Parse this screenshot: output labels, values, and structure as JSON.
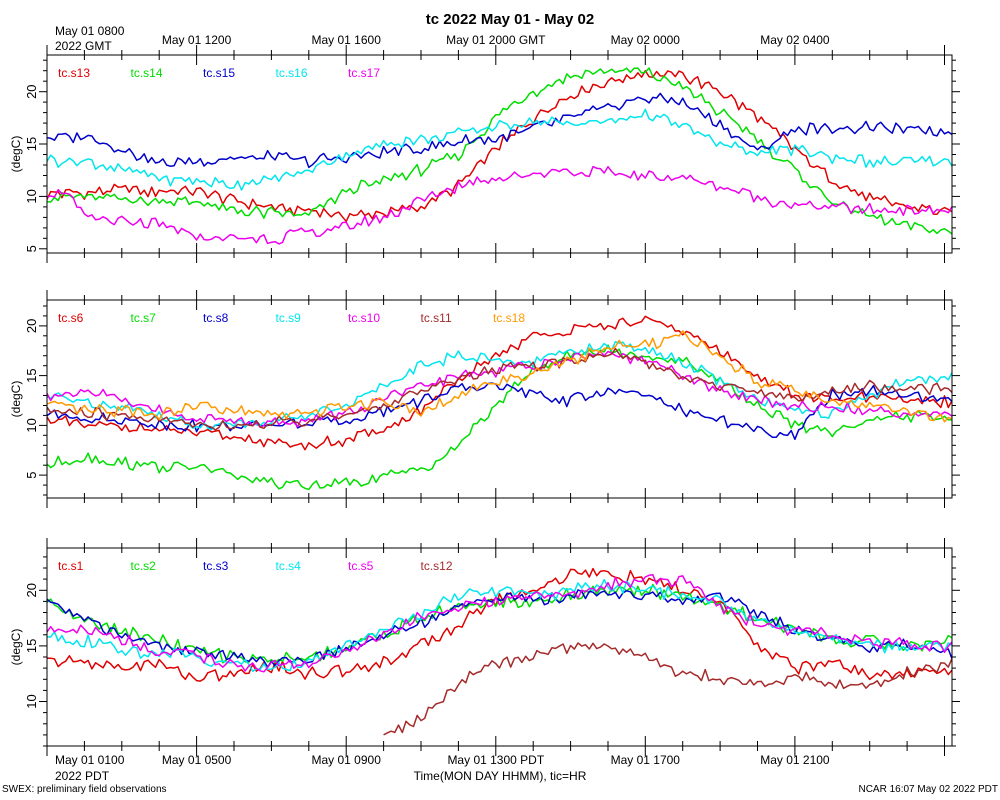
{
  "title": "tc 2022 May 01 - May 02",
  "gmt_axis": {
    "first_label_line1": "May 01 0800",
    "first_label_line2": "2022 GMT",
    "labels": [
      "May 01 0800",
      "May 01 1200",
      "May 01 1600",
      "May 01 2000 GMT",
      "May 02 0000",
      "May 02 0400"
    ]
  },
  "pdt_axis": {
    "labels": [
      "May 01 0100",
      "May 01 0500",
      "May 01 0900",
      "May 01 1300 PDT",
      "May 01 1700",
      "May 01 2100"
    ],
    "year_label": "2022 PDT",
    "xlabel": "Time(MON DAY HHMM), tic=HR"
  },
  "footer": {
    "left": "SWEX: preliminary field observations",
    "right": "NCAR 16:07 May 02 2022 PDT"
  },
  "colors": {
    "red": "#e00000",
    "green": "#00dd00",
    "blue": "#0000cc",
    "cyan": "#00e5ee",
    "magenta": "#ee00ee",
    "brown": "#a52a2a",
    "orange": "#ff9900"
  },
  "chart_data": [
    {
      "type": "line",
      "ylabel": "(degC)",
      "ylim": [
        4.6,
        23.5
      ],
      "yticks": [
        5,
        10,
        15,
        20
      ],
      "x_unit": "hours since May 01 0800 GMT",
      "xlim": [
        0,
        24.2
      ],
      "series": [
        {
          "name": "tc.s13",
          "color": "#e00000",
          "x": [
            0,
            2,
            4,
            5,
            6,
            7,
            8,
            9,
            10,
            11,
            12,
            13,
            14,
            15,
            16,
            17,
            18,
            19,
            20,
            21,
            22,
            23,
            24.2
          ],
          "values": [
            10.2,
            10.6,
            10.4,
            9.6,
            9.0,
            8.6,
            8.2,
            8.4,
            9.0,
            11.0,
            14.5,
            17.5,
            19.8,
            21.0,
            21.8,
            21.5,
            20.0,
            17.5,
            14.5,
            11.5,
            9.8,
            9.0,
            8.5
          ]
        },
        {
          "name": "tc.s14",
          "color": "#00dd00",
          "x": [
            0,
            2,
            4,
            5,
            6,
            7,
            8,
            9,
            10,
            11,
            12,
            13,
            14,
            15,
            16,
            17,
            18,
            19,
            20,
            21,
            22,
            23,
            24.2
          ],
          "values": [
            10.0,
            9.8,
            9.4,
            8.6,
            8.4,
            8.2,
            10.5,
            11.5,
            12.5,
            14.0,
            17.5,
            20.0,
            21.5,
            22.0,
            21.8,
            20.5,
            18.0,
            15.5,
            12.5,
            9.5,
            8.0,
            7.3,
            6.5
          ]
        },
        {
          "name": "tc.s15",
          "color": "#0000cc",
          "x": [
            0,
            1,
            2,
            3,
            4,
            5,
            6,
            7,
            8,
            9,
            10,
            11,
            12,
            13,
            14,
            15,
            16,
            17,
            18,
            19,
            20,
            21,
            22,
            23,
            24.2
          ],
          "values": [
            15.6,
            15.8,
            14.5,
            13.2,
            13.4,
            13.6,
            13.8,
            13.4,
            13.6,
            14.2,
            14.5,
            15.2,
            15.5,
            16.5,
            17.5,
            18.5,
            19.5,
            19.0,
            16.8,
            14.2,
            16.4,
            16.5,
            16.5,
            16.4,
            16.2
          ]
        },
        {
          "name": "tc.s16",
          "color": "#00e5ee",
          "x": [
            0,
            1,
            2,
            3,
            4,
            5,
            6,
            7,
            8,
            9,
            10,
            11,
            12,
            13,
            14,
            15,
            16,
            17,
            18,
            19,
            20,
            21,
            22,
            23,
            24.2
          ],
          "values": [
            13.5,
            13.3,
            12.5,
            11.8,
            11.4,
            11.2,
            11.5,
            12.5,
            14.0,
            15.0,
            15.5,
            16.0,
            16.8,
            17.2,
            17.0,
            17.2,
            17.8,
            16.8,
            15.0,
            14.2,
            14.5,
            13.8,
            13.3,
            13.2,
            13.3
          ]
        },
        {
          "name": "tc.s17",
          "color": "#ee00ee",
          "x": [
            0,
            0.5,
            1,
            2,
            3,
            4,
            5,
            6,
            7,
            8,
            9,
            10,
            11,
            12,
            13,
            14,
            15,
            16,
            17,
            18,
            19,
            20,
            21,
            22,
            23,
            24.2
          ],
          "values": [
            10.2,
            10.4,
            8.0,
            7.5,
            7.2,
            6.2,
            5.9,
            6.0,
            6.5,
            7.0,
            8.0,
            9.5,
            11.0,
            11.8,
            12.2,
            12.5,
            12.2,
            12.0,
            11.8,
            11.0,
            10.0,
            9.2,
            9.0,
            8.8,
            8.7,
            8.6
          ]
        }
      ]
    },
    {
      "type": "line",
      "ylabel": "(degC)",
      "ylim": [
        2.7,
        22.6
      ],
      "yticks": [
        5,
        10,
        15,
        20
      ],
      "x_unit": "hours since May 01 0800 GMT",
      "xlim": [
        0,
        24.2
      ],
      "series": [
        {
          "name": "tc.s6",
          "color": "#e00000",
          "x": [
            0,
            1,
            2,
            3,
            4,
            5,
            6,
            7,
            8,
            9,
            10,
            11,
            12,
            13,
            14,
            15,
            16,
            17,
            18,
            19,
            20,
            21,
            22,
            23,
            24.2
          ],
          "values": [
            10.5,
            10.0,
            9.8,
            9.5,
            9.2,
            8.8,
            8.2,
            8.0,
            8.5,
            9.5,
            11.5,
            14.5,
            17.0,
            19.0,
            19.5,
            20.0,
            20.5,
            19.5,
            17.5,
            15.0,
            13.0,
            12.5,
            12.8,
            12.5,
            12.3
          ]
        },
        {
          "name": "tc.s7",
          "color": "#00dd00",
          "x": [
            0,
            1,
            2,
            3,
            4,
            5,
            6,
            7,
            8,
            9,
            10,
            11,
            12,
            13,
            14,
            15,
            16,
            17,
            18,
            19,
            20,
            21,
            22,
            23,
            24.2
          ],
          "values": [
            6.0,
            6.8,
            6.3,
            5.8,
            5.8,
            5.0,
            4.2,
            3.8,
            4.2,
            4.8,
            5.5,
            8.0,
            12.0,
            15.5,
            17.0,
            17.5,
            17.0,
            16.5,
            14.5,
            12.0,
            10.0,
            9.5,
            10.5,
            11.0,
            10.5
          ]
        },
        {
          "name": "tc.s8",
          "color": "#0000cc",
          "x": [
            0,
            1,
            2,
            3,
            4,
            5,
            6,
            7,
            8,
            9,
            10,
            11,
            12,
            13,
            14,
            15,
            16,
            17,
            18,
            19,
            20,
            21,
            22,
            23,
            24.2
          ],
          "values": [
            11.0,
            10.8,
            10.5,
            10.2,
            10.0,
            9.8,
            10.0,
            10.2,
            10.6,
            11.5,
            12.5,
            13.5,
            14.0,
            13.0,
            12.5,
            13.5,
            13.0,
            11.5,
            10.5,
            9.5,
            9.0,
            13.0,
            13.5,
            12.8,
            12.5
          ]
        },
        {
          "name": "tc.s9",
          "color": "#00e5ee",
          "x": [
            0,
            1,
            2,
            3,
            4,
            5,
            6,
            7,
            8,
            9,
            10,
            11,
            12,
            13,
            14,
            15,
            16,
            17,
            18,
            19,
            20,
            21,
            22,
            23,
            24.2
          ],
          "values": [
            13.0,
            12.5,
            12.0,
            11.0,
            10.0,
            10.2,
            10.5,
            11.0,
            12.0,
            14.0,
            16.0,
            17.0,
            16.5,
            16.5,
            17.5,
            18.0,
            17.5,
            16.5,
            14.5,
            12.5,
            11.5,
            11.0,
            13.0,
            14.5,
            15.0
          ]
        },
        {
          "name": "tc.s10",
          "color": "#ee00ee",
          "x": [
            0,
            1,
            2,
            3,
            4,
            5,
            6,
            7,
            8,
            9,
            10,
            11,
            12,
            13,
            14,
            15,
            16,
            17,
            18,
            19,
            20,
            21,
            22,
            23,
            24.2
          ],
          "values": [
            13.0,
            13.5,
            12.5,
            11.5,
            10.8,
            10.5,
            10.2,
            10.5,
            11.2,
            12.5,
            14.0,
            15.0,
            15.5,
            16.0,
            16.8,
            17.2,
            16.5,
            15.0,
            13.5,
            12.5,
            12.0,
            11.8,
            11.5,
            11.2,
            11.0
          ]
        },
        {
          "name": "tc.s11",
          "color": "#a52a2a",
          "x": [
            0,
            1,
            2,
            3,
            4,
            5,
            6,
            7,
            8,
            9,
            10,
            11,
            12,
            13,
            14,
            15,
            16,
            17,
            18,
            19,
            20,
            21,
            22,
            23,
            24.2
          ],
          "values": [
            11.5,
            11.2,
            11.0,
            10.5,
            10.2,
            10.0,
            10.2,
            10.5,
            11.0,
            12.0,
            13.5,
            14.8,
            15.5,
            16.0,
            16.5,
            17.5,
            16.5,
            15.0,
            14.0,
            13.5,
            12.5,
            13.5,
            14.0,
            13.8,
            13.5
          ]
        },
        {
          "name": "tc.s18",
          "color": "#ff9900",
          "x": [
            0,
            1,
            2,
            3,
            4,
            5,
            6,
            7,
            8,
            9,
            10,
            11,
            12,
            13,
            14,
            15,
            16,
            17,
            18,
            19,
            20,
            21,
            22,
            23,
            24.2
          ],
          "values": [
            12.0,
            11.5,
            11.5,
            11.2,
            12.0,
            11.5,
            11.0,
            11.2,
            12.0,
            12.5,
            11.5,
            13.0,
            14.5,
            15.0,
            16.5,
            18.0,
            18.0,
            19.0,
            17.0,
            14.5,
            13.5,
            12.5,
            12.0,
            11.5,
            10.5
          ]
        }
      ]
    },
    {
      "type": "line",
      "ylabel": "(degC)",
      "ylim": [
        6.0,
        23.8
      ],
      "yticks": [
        10,
        15,
        20
      ],
      "x_unit": "hours since May 01 0800 GMT",
      "xlim": [
        0,
        24.2
      ],
      "series": [
        {
          "name": "tc.s1",
          "color": "#e00000",
          "x": [
            0,
            1,
            2,
            3,
            4,
            5,
            6,
            7,
            8,
            9,
            10,
            11,
            12,
            13,
            14,
            15,
            16,
            17,
            18,
            19,
            20,
            21,
            22,
            23,
            24.2
          ],
          "values": [
            13.5,
            13.5,
            13.0,
            13.5,
            12.0,
            12.5,
            13.2,
            12.5,
            12.8,
            13.5,
            15.0,
            17.0,
            19.0,
            20.0,
            21.5,
            21.5,
            21.0,
            20.0,
            19.0,
            15.0,
            13.0,
            13.5,
            12.5,
            12.5,
            12.8
          ]
        },
        {
          "name": "tc.s2",
          "color": "#00dd00",
          "x": [
            0,
            1,
            2,
            3,
            4,
            5,
            6,
            7,
            8,
            9,
            10,
            11,
            12,
            13,
            14,
            15,
            16,
            17,
            18,
            19,
            20,
            21,
            22,
            23,
            24.2
          ],
          "values": [
            19.0,
            17.5,
            16.5,
            15.5,
            14.5,
            14.0,
            13.8,
            14.0,
            15.0,
            16.0,
            17.5,
            18.5,
            19.0,
            19.0,
            19.5,
            20.0,
            20.0,
            19.5,
            18.5,
            17.5,
            16.5,
            15.5,
            15.5,
            15.0,
            15.5
          ]
        },
        {
          "name": "tc.s3",
          "color": "#0000cc",
          "x": [
            0,
            1,
            2,
            3,
            4,
            5,
            6,
            7,
            8,
            9,
            10,
            11,
            12,
            13,
            14,
            15,
            16,
            17,
            18,
            19,
            20,
            21,
            22,
            23,
            24.2
          ],
          "values": [
            19.0,
            17.5,
            16.0,
            15.0,
            14.5,
            14.2,
            13.5,
            13.8,
            14.8,
            16.0,
            17.0,
            18.5,
            19.5,
            19.0,
            19.5,
            20.0,
            19.5,
            19.0,
            19.5,
            18.0,
            16.5,
            15.5,
            15.0,
            15.0,
            14.5
          ]
        },
        {
          "name": "tc.s4",
          "color": "#00e5ee",
          "x": [
            0,
            1,
            2,
            3,
            4,
            5,
            6,
            7,
            8,
            9,
            10,
            11,
            12,
            13,
            14,
            15,
            16,
            17,
            18,
            19,
            20,
            21,
            22,
            23,
            24.2
          ],
          "values": [
            16.0,
            15.5,
            14.5,
            14.5,
            14.0,
            13.5,
            13.0,
            13.5,
            15.0,
            16.5,
            18.0,
            19.5,
            20.0,
            19.5,
            20.0,
            20.5,
            20.0,
            19.5,
            19.0,
            17.5,
            16.5,
            15.5,
            15.0,
            15.0,
            15.0
          ]
        },
        {
          "name": "tc.s5",
          "color": "#ee00ee",
          "x": [
            0,
            1,
            2,
            3,
            4,
            5,
            6,
            7,
            8,
            9,
            10,
            11,
            12,
            13,
            14,
            15,
            16,
            17,
            18,
            19,
            20,
            21,
            22,
            23,
            24.2
          ],
          "values": [
            16.5,
            16.5,
            15.5,
            14.5,
            14.2,
            13.2,
            13.0,
            13.5,
            14.5,
            16.0,
            17.5,
            18.5,
            19.0,
            19.5,
            19.5,
            20.5,
            20.8,
            21.0,
            18.5,
            17.0,
            16.5,
            16.0,
            15.5,
            15.0,
            15.0
          ]
        },
        {
          "name": "tc.s12",
          "color": "#a52a2a",
          "x": [
            9,
            10,
            11,
            12,
            13,
            14,
            15,
            16,
            17,
            18,
            19,
            20,
            21,
            22,
            23,
            24.2
          ],
          "values": [
            7.0,
            8.5,
            11.5,
            13.5,
            14.0,
            14.8,
            15.0,
            14.0,
            12.5,
            12.0,
            11.5,
            12.5,
            11.5,
            11.5,
            12.5,
            13.5
          ]
        }
      ]
    }
  ]
}
